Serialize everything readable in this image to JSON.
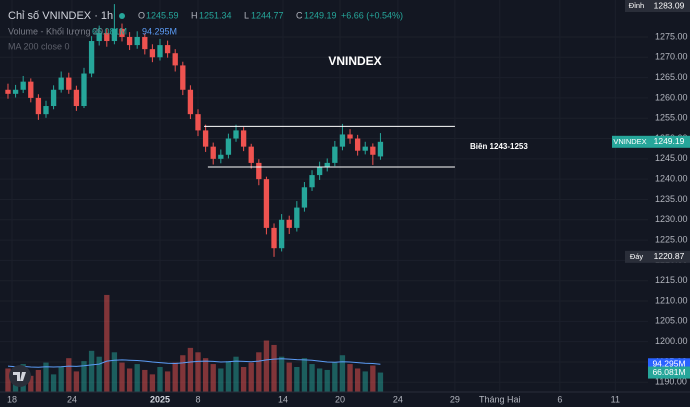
{
  "chart_data": {
    "type": "candlestick",
    "title": "VNINDEX",
    "symbol": "Chỉ số VNINDEX · 1h",
    "ohlc_labels": [
      "O",
      "H",
      "L",
      "C"
    ],
    "change": "+6.66 (+0.54%)",
    "volume_title": "Volume - Khối lượng 20",
    "ma_title": "MA 200 close 0",
    "up_color": "#26a69a",
    "down_color": "#ef5350",
    "open": [
      1262,
      1261,
      1262,
      1264,
      1260,
      1256,
      1258,
      1262,
      1265,
      1262,
      1258,
      1266,
      1274,
      1276,
      1274,
      1277,
      1275,
      1273,
      1275,
      1272,
      1270,
      1273,
      1271,
      1268,
      1262,
      1256,
      1252,
      1248,
      1245,
      1246,
      1250,
      1252,
      1248,
      1244,
      1240,
      1228,
      1223,
      1230,
      1228,
      1233,
      1238,
      1241,
      1243,
      1244,
      1248,
      1251,
      1250,
      1247,
      1248,
      1245.59
    ],
    "high": [
      1263.5,
      1263.2,
      1265.4,
      1264.8,
      1260.9,
      1259.3,
      1263.1,
      1266.5,
      1266.2,
      1263.0,
      1267.4,
      1275.2,
      1277.8,
      1277.1,
      1283.09,
      1278.3,
      1276.2,
      1276.4,
      1275.9,
      1273.2,
      1274.5,
      1274.1,
      1272.0,
      1268.9,
      1263.1,
      1257.2,
      1253.4,
      1249.0,
      1247.3,
      1251.2,
      1253.4,
      1252.8,
      1248.7,
      1244.9,
      1240.6,
      1229.1,
      1231.4,
      1231.0,
      1234.6,
      1239.3,
      1242.2,
      1244.3,
      1245.1,
      1249.4,
      1253.6,
      1252.3,
      1250.9,
      1249.2,
      1248.8,
      1251.34
    ],
    "low": [
      1259.8,
      1260.1,
      1261.2,
      1258.9,
      1254.6,
      1255.1,
      1257.2,
      1261.3,
      1261.0,
      1256.8,
      1257.5,
      1265.1,
      1272.9,
      1272.6,
      1273.2,
      1273.9,
      1271.8,
      1272.1,
      1270.7,
      1268.8,
      1269.2,
      1269.9,
      1266.5,
      1260.7,
      1254.8,
      1250.6,
      1246.7,
      1243.6,
      1243.9,
      1245.1,
      1249.2,
      1246.9,
      1242.6,
      1238.5,
      1226.4,
      1220.87,
      1222.2,
      1226.5,
      1227.1,
      1232.0,
      1237.1,
      1239.8,
      1241.9,
      1243.2,
      1247.1,
      1248.7,
      1245.8,
      1246.1,
      1243.5,
      1244.77
    ],
    "close": [
      1261,
      1262,
      1264,
      1260,
      1256,
      1258,
      1262,
      1265,
      1262,
      1258,
      1266,
      1274,
      1276,
      1274,
      1277,
      1275,
      1273,
      1275,
      1272,
      1270,
      1273,
      1271,
      1268,
      1262,
      1256,
      1252,
      1248,
      1245,
      1246,
      1250,
      1252,
      1248,
      1244,
      1240,
      1228,
      1223,
      1230,
      1228,
      1233,
      1238,
      1241,
      1243,
      1244,
      1248,
      1251,
      1250,
      1247,
      1248,
      1246,
      1249.19
    ],
    "volume": [
      80,
      65,
      95,
      55,
      75,
      100,
      60,
      85,
      115,
      70,
      105,
      140,
      120,
      330,
      135,
      100,
      80,
      95,
      75,
      60,
      85,
      70,
      100,
      125,
      150,
      135,
      115,
      95,
      80,
      105,
      120,
      85,
      100,
      135,
      175,
      160,
      120,
      100,
      85,
      115,
      95,
      80,
      75,
      100,
      125,
      95,
      80,
      70,
      90,
      66.081
    ],
    "volume_ma": {
      "color": "#5b9cf6",
      "values": [
        88,
        86,
        87,
        85,
        84,
        86,
        85,
        86,
        88,
        87,
        89,
        92,
        95,
        105,
        108,
        109,
        108,
        107,
        105,
        102,
        100,
        98,
        97,
        99,
        102,
        104,
        105,
        104,
        102,
        103,
        105,
        104,
        103,
        105,
        109,
        112,
        113,
        112,
        110,
        109,
        108,
        105,
        102,
        101,
        103,
        102,
        100,
        98,
        97,
        94.295
      ]
    },
    "last_volume": {
      "value": 66.081,
      "label": "66.081M"
    },
    "last_volume_ma": {
      "value": 94.295,
      "label": "94.295M"
    },
    "xlim": [
      -1.05,
      84.2
    ],
    "xticks": [
      {
        "value": 0.53,
        "label": "18"
      },
      {
        "value": 8.42,
        "label": "24"
      },
      {
        "value": 20,
        "label": "2025"
      },
      {
        "value": 25,
        "label": "8"
      },
      {
        "value": 36.18,
        "label": "14"
      },
      {
        "value": 43.68,
        "label": "20"
      },
      {
        "value": 51.3,
        "label": "24"
      },
      {
        "value": 58.8,
        "label": "29"
      },
      {
        "value": 64.7,
        "label": "Tháng Hai"
      },
      {
        "value": 72.6,
        "label": "6"
      },
      {
        "value": 79.9,
        "label": "11"
      }
    ],
    "ylim": [
      1187.6,
      1284.1
    ],
    "yticks": [
      {
        "value": 1190,
        "label": "1190.00"
      },
      {
        "value": 1195,
        "label": "1195.00"
      },
      {
        "value": 1200,
        "label": "1200.00"
      },
      {
        "value": 1205,
        "label": "1205.00"
      },
      {
        "value": 1210,
        "label": "1210.00"
      },
      {
        "value": 1215,
        "label": "1215.00"
      },
      {
        "value": 1220,
        "label": "1220.00"
      },
      {
        "value": 1225,
        "label": "1225.00"
      },
      {
        "value": 1230,
        "label": "1230.00"
      },
      {
        "value": 1235,
        "label": "1235.00"
      },
      {
        "value": 1240,
        "label": "1240.00"
      },
      {
        "value": 1245,
        "label": "1245.00"
      },
      {
        "value": 1250,
        "label": "1250.00"
      },
      {
        "value": 1255,
        "label": "1255.00"
      },
      {
        "value": 1260,
        "label": "1260.00"
      },
      {
        "value": 1265,
        "label": "1265.00"
      },
      {
        "value": 1270,
        "label": "1270.00"
      },
      {
        "value": 1275,
        "label": "1275.00"
      }
    ],
    "y2lim": [
      0,
      340
    ],
    "grid": true,
    "badges": [
      {
        "label": "Đỉnh",
        "value": 1283.09
      },
      {
        "label": "VNINDEX",
        "value": 1249.19
      },
      {
        "label": "Đáy",
        "value": 1220.87
      }
    ],
    "range_lines": [
      {
        "y": 1253,
        "x": [
          25.8,
          58.8
        ]
      },
      {
        "y": 1243,
        "x": [
          26.3,
          58.8
        ]
      }
    ],
    "range_label": "Biên 1243-1253"
  }
}
